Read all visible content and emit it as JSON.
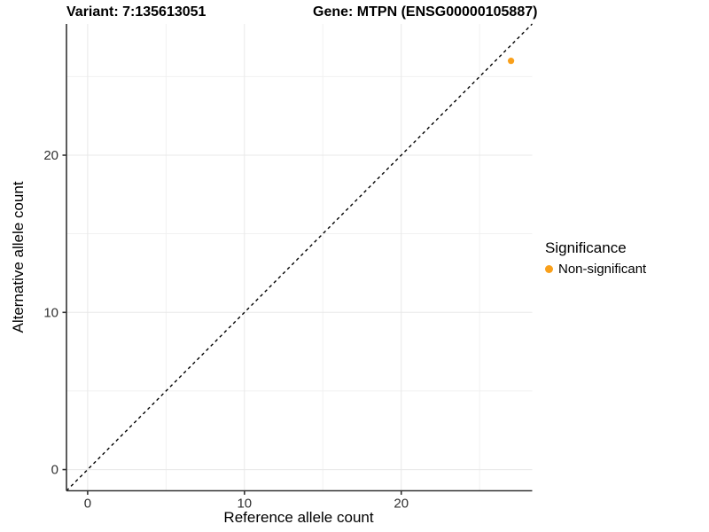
{
  "chart_data": {
    "type": "scatter",
    "title_left": "Variant: 7:135613051",
    "title_right": "Gene: MTPN (ENSG00000105887)",
    "xlabel": "Reference allele count",
    "ylabel": "Alternative allele count",
    "xlim": [
      -1.35,
      28.35
    ],
    "ylim": [
      -1.35,
      28.35
    ],
    "xticks": [
      0,
      10,
      20
    ],
    "yticks": [
      0,
      10,
      20
    ],
    "minor_xticks": [
      5,
      15,
      25
    ],
    "minor_yticks": [
      5,
      15,
      25
    ],
    "grid": true,
    "identity_line": {
      "slope": 1,
      "intercept": 0,
      "style": "dashed",
      "color": "#000000"
    },
    "series": [
      {
        "name": "Non-significant",
        "color": "#F9A01B",
        "points": [
          {
            "x": 27,
            "y": 26
          }
        ]
      }
    ],
    "legend": {
      "title": "Significance",
      "position": "right",
      "entries": [
        {
          "label": "Non-significant",
          "color": "#F9A01B"
        }
      ]
    }
  }
}
